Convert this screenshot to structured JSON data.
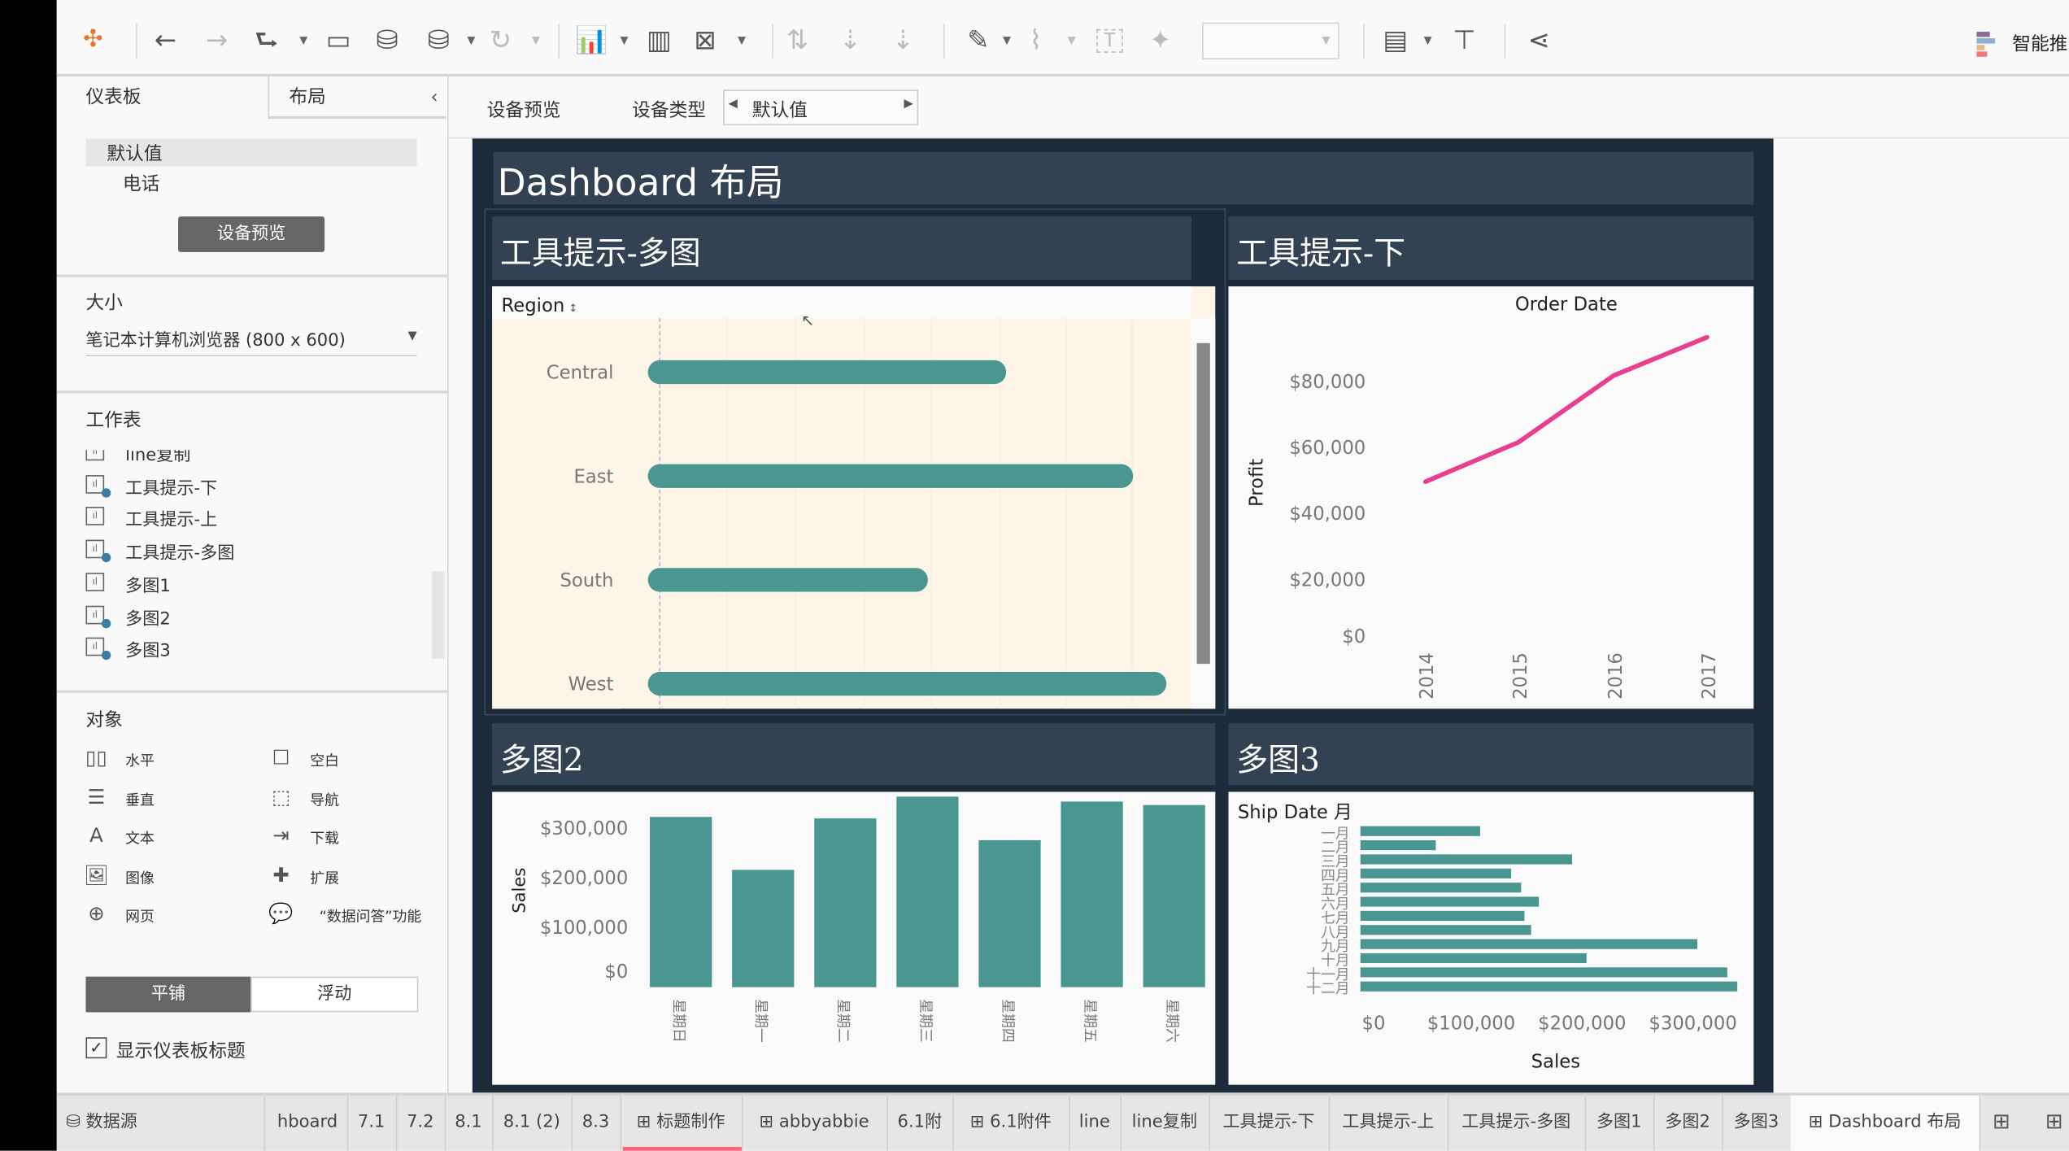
{
  "toolbar": {
    "show_me_label": "智能推",
    "fit_dropdown_value": "",
    "icons": [
      "tableau-logo-icon",
      "back-icon",
      "forward-icon",
      "redo-icon",
      "save-icon",
      "new-datasource-icon",
      "pause-updates-icon",
      "refresh-icon",
      "new-worksheet-icon",
      "new-dashboard-icon",
      "clear-sheet-icon",
      "swap-icon",
      "sort-ascending-icon",
      "sort-descending-icon",
      "highlight-icon",
      "annotate-icon",
      "text-label-icon",
      "pin-icon",
      "show-cards-icon",
      "presentation-icon",
      "share-icon"
    ]
  },
  "left_panel": {
    "tabs": [
      "仪表板",
      "布局"
    ],
    "devices": [
      "默认值",
      "电话"
    ],
    "device_preview_button": "设备预览",
    "size_title": "大小",
    "size_value": "笔记本计算机浏览器 (800 x 600)",
    "sheets_title": "工作表",
    "sheets": [
      {
        "name": "line复制",
        "used": false
      },
      {
        "name": "工具提示-下",
        "used": true
      },
      {
        "name": "工具提示-上",
        "used": false
      },
      {
        "name": "工具提示-多图",
        "used": true
      },
      {
        "name": "多图1",
        "used": false
      },
      {
        "name": "多图2",
        "used": true
      },
      {
        "name": "多图3",
        "used": true
      }
    ],
    "objects_title": "对象",
    "objects": [
      {
        "label": "水平",
        "icon": "horizontal-container-icon"
      },
      {
        "label": "空白",
        "icon": "blank-icon"
      },
      {
        "label": "垂直",
        "icon": "vertical-container-icon"
      },
      {
        "label": "导航",
        "icon": "navigation-icon"
      },
      {
        "label": "文本",
        "icon": "text-icon"
      },
      {
        "label": "下载",
        "icon": "download-icon"
      },
      {
        "label": "图像",
        "icon": "image-icon"
      },
      {
        "label": "扩展",
        "icon": "extension-icon"
      },
      {
        "label": "网页",
        "icon": "webpage-icon"
      },
      {
        "label": "“数据问答”功能",
        "icon": "ask-data-icon"
      }
    ],
    "tiled_label": "平铺",
    "floating_label": "浮动",
    "show_title_label": "显示仪表板标题",
    "show_title_checked": true
  },
  "device_bar": {
    "preview_label": "设备预览",
    "type_label": "设备类型",
    "type_value": "默认值"
  },
  "dashboard": {
    "title": "Dashboard 布局",
    "colors": {
      "background": "#1c2b3a",
      "title_bg": "#334252",
      "bar": "#4a9792",
      "line": "#e8408f",
      "highlight_bg": "#fcf5e8"
    }
  },
  "chart_data": [
    {
      "title": "工具提示-多图",
      "type": "bar",
      "orientation": "horizontal",
      "header": "Region",
      "categories": [
        "Central",
        "East",
        "South",
        "West"
      ],
      "values": [
        501240,
        678781,
        391722,
        725458
      ]
    },
    {
      "title": "工具提示-下",
      "type": "line",
      "xlabel": "Order Date",
      "ylabel": "Profit",
      "x": [
        "2014",
        "2015",
        "2016",
        "2017"
      ],
      "values": [
        49544,
        61619,
        81795,
        93439
      ],
      "yticks": [
        "$0",
        "$20,000",
        "$40,000",
        "$60,000",
        "$80,000"
      ],
      "ylim": [
        0,
        100000
      ]
    },
    {
      "title": "多图2",
      "type": "bar",
      "ylabel": "Sales",
      "categories": [
        "星期日",
        "星期一",
        "星期二",
        "星期三",
        "星期四",
        "星期五",
        "星期六"
      ],
      "values": [
        344000,
        237000,
        341000,
        385000,
        297000,
        375000,
        368000
      ],
      "yticks": [
        "$0",
        "$100,000",
        "$200,000",
        "$300,000"
      ]
    },
    {
      "title": "多图3",
      "type": "bar",
      "orientation": "horizontal",
      "header": "Ship Date 月",
      "xlabel": "Sales",
      "categories": [
        "一月",
        "二月",
        "三月",
        "四月",
        "五月",
        "六月",
        "七月",
        "八月",
        "九月",
        "十月",
        "十一月",
        "十二月"
      ],
      "values": [
        108000,
        68000,
        191000,
        136000,
        145000,
        161000,
        148000,
        154000,
        304000,
        204000,
        331000,
        340000
      ],
      "xticks": [
        "$0",
        "$100,000",
        "$200,000",
        "$300,000"
      ]
    }
  ],
  "sheet_tabs": {
    "datasource": "数据源",
    "tabs": [
      "hboard",
      "7.1",
      "7.2",
      "8.1",
      "8.1 (2)",
      "8.3",
      "标题制作",
      "abbyabbie",
      "6.1附",
      "6.1附件",
      "line",
      "line复制",
      "工具提示-下",
      "工具提示-上",
      "工具提示-多图",
      "多图1",
      "多图2",
      "多图3",
      "Dashboard 布局"
    ],
    "active": "Dashboard 布局"
  }
}
